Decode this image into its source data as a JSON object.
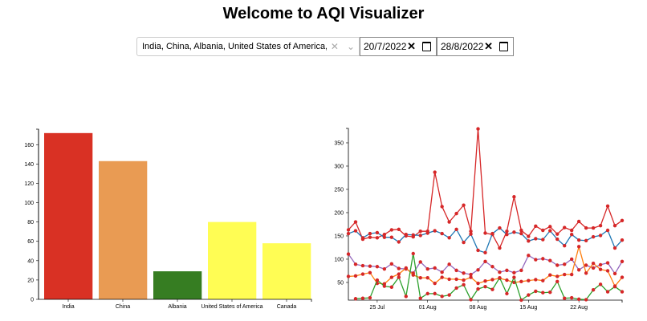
{
  "header": {
    "title": "Welcome to AQI Visualizer"
  },
  "controls": {
    "country_select": {
      "value": "India, China, Albania, United States of America, Canada",
      "clear_icon": "close-icon",
      "dropdown_icon": "chevron-down-icon"
    },
    "start_date": {
      "value": "20/7/2022"
    },
    "end_date": {
      "value": "28/8/2022"
    }
  },
  "chart_data": [
    {
      "type": "bar",
      "categories": [
        "India",
        "China",
        "Albania",
        "United States of America",
        "Canada"
      ],
      "values": [
        172,
        143,
        29,
        80,
        58
      ],
      "colors": [
        "#d93124",
        "#e99b53",
        "#367d22",
        "#fffd54",
        "#fffd54"
      ],
      "ylim": [
        0,
        176
      ],
      "yticks": [
        0,
        20,
        40,
        60,
        80,
        100,
        120,
        140,
        160
      ],
      "grid": false
    },
    {
      "type": "line",
      "x_start": "2022-07-21",
      "x_end": "2022-08-28",
      "xticks": [
        "25 Jul",
        "01 Aug",
        "08 Aug",
        "15 Aug",
        "22 Aug"
      ],
      "ylim": [
        12,
        381
      ],
      "yticks": [
        50,
        100,
        150,
        200,
        250,
        300,
        350
      ],
      "grid": false,
      "series": [
        {
          "color": "#d62728",
          "values": [
            163,
            180,
            143,
            147,
            146,
            153,
            163,
            164,
            150,
            148,
            160,
            160,
            287,
            213,
            180,
            198,
            216,
            160,
            380,
            156,
            153,
            124,
            160,
            234,
            162,
            149,
            171,
            162,
            170,
            154,
            168,
            162,
            181,
            167,
            167,
            172,
            214,
            172,
            183
          ]
        },
        {
          "color": "#1f77b4",
          "values": [
            155,
            161,
            146,
            155,
            157,
            147,
            147,
            137,
            153,
            152,
            151,
            156,
            161,
            155,
            146,
            164,
            136,
            154,
            119,
            114,
            155,
            167,
            153,
            158,
            155,
            139,
            144,
            142,
            161,
            143,
            129,
            153,
            141,
            140,
            148,
            151,
            162,
            124,
            141
          ]
        },
        {
          "color": "#9467bd",
          "values": [
            111,
            89,
            86,
            85,
            84,
            79,
            90,
            80,
            79,
            70,
            94,
            79,
            81,
            72,
            89,
            76,
            70,
            67,
            77,
            95,
            84,
            72,
            76,
            71,
            76,
            108,
            99,
            101,
            97,
            87,
            89,
            100,
            77,
            87,
            81,
            88,
            92,
            69,
            95
          ]
        },
        {
          "color": "#ff7f0e",
          "values": [
            63,
            64,
            68,
            71,
            48,
            47,
            61,
            68,
            81,
            66,
            60,
            60,
            48,
            61,
            57,
            57,
            55,
            61,
            48,
            53,
            56,
            59,
            55,
            50,
            52,
            54,
            56,
            54,
            66,
            63,
            67,
            67,
            127,
            70,
            91,
            78,
            75,
            42,
            61
          ]
        },
        {
          "color": "#2ca02c",
          "values": [
            null,
            15,
            16,
            17,
            55,
            42,
            40,
            61,
            20,
            112,
            16,
            26,
            26,
            20,
            23,
            38,
            45,
            13,
            36,
            41,
            35,
            60,
            26,
            61,
            12,
            23,
            31,
            28,
            29,
            52,
            16,
            17,
            14,
            13,
            34,
            46,
            30,
            41,
            30
          ]
        }
      ]
    }
  ]
}
